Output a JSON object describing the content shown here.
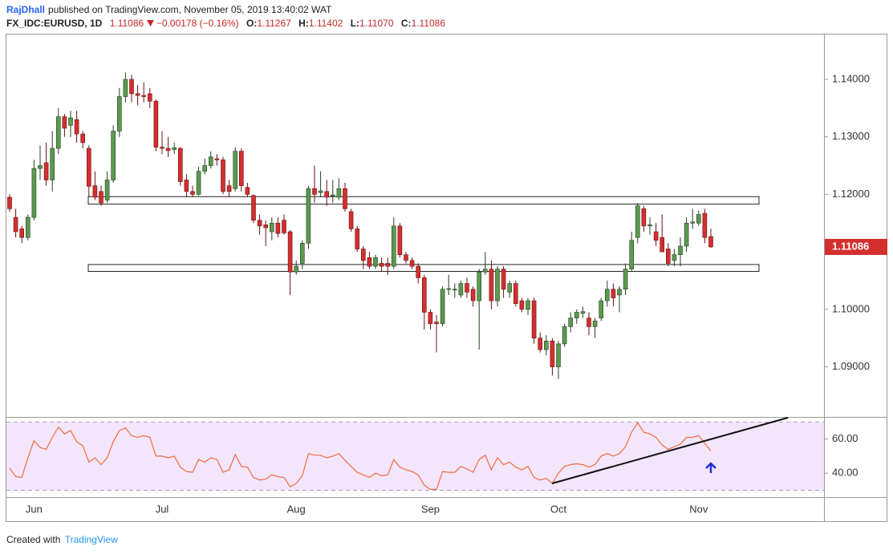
{
  "header": {
    "author": "RajDhall",
    "published": "published on TradingView.com, November 05, 2019 13:40:02 WAT",
    "symbol": "FX_IDC:EURUSD, 1D",
    "last": "1.11086",
    "change": "−0.00178 (−0.16%)",
    "ohlc_labels": [
      "O:",
      "H:",
      "L:",
      "C:"
    ],
    "ohlc_values": [
      "1.11267",
      "1.11402",
      "1.11070",
      "1.11086"
    ]
  },
  "chart_data": [
    {
      "type": "candlestick",
      "up_color": "#5b9a4f",
      "down_color": "#d32f2f",
      "categories": [
        null,
        null,
        null,
        null,
        "Jun",
        null,
        null,
        null,
        null,
        null,
        null,
        null,
        null,
        null,
        null,
        null,
        null,
        null,
        null,
        null,
        null,
        null,
        null,
        null,
        null,
        "Jul",
        null,
        null,
        null,
        null,
        null,
        null,
        null,
        null,
        null,
        null,
        null,
        null,
        null,
        null,
        null,
        null,
        null,
        null,
        null,
        null,
        null,
        "Aug",
        null,
        null,
        null,
        null,
        null,
        null,
        null,
        null,
        null,
        null,
        null,
        null,
        null,
        null,
        null,
        null,
        null,
        null,
        null,
        null,
        null,
        "Sep",
        null,
        null,
        null,
        null,
        null,
        null,
        null,
        null,
        null,
        null,
        null,
        null,
        null,
        null,
        null,
        null,
        null,
        null,
        null,
        null,
        "Oct",
        null,
        null,
        null,
        null,
        null,
        null,
        null,
        null,
        null,
        null,
        null,
        null,
        null,
        null,
        null,
        null,
        null,
        null,
        null,
        null,
        null,
        null,
        "Nov",
        null,
        null
      ],
      "ohlc": [
        [
          1.1195,
          1.12,
          1.117,
          1.1175
        ],
        [
          1.116,
          1.1175,
          1.1125,
          1.1135
        ],
        [
          1.114,
          1.1145,
          1.1115,
          1.1125
        ],
        [
          1.1125,
          1.1165,
          1.112,
          1.116
        ],
        [
          1.116,
          1.126,
          1.1155,
          1.1245
        ],
        [
          1.1245,
          1.1285,
          1.1225,
          1.125
        ],
        [
          1.1255,
          1.129,
          1.1215,
          1.1225
        ],
        [
          1.1225,
          1.131,
          1.1205,
          1.128
        ],
        [
          1.128,
          1.135,
          1.127,
          1.1335
        ],
        [
          1.1335,
          1.134,
          1.13,
          1.1315
        ],
        [
          1.132,
          1.1345,
          1.13,
          1.1333
        ],
        [
          1.133,
          1.1345,
          1.129,
          1.1305
        ],
        [
          1.1305,
          1.131,
          1.128,
          1.129
        ],
        [
          1.128,
          1.1285,
          1.1195,
          1.1214
        ],
        [
          1.1215,
          1.124,
          1.119,
          1.1195
        ],
        [
          1.1205,
          1.1215,
          1.118,
          1.1185
        ],
        [
          1.119,
          1.124,
          1.1185,
          1.1225
        ],
        [
          1.1225,
          1.132,
          1.122,
          1.131
        ],
        [
          1.131,
          1.1385,
          1.13,
          1.137
        ],
        [
          1.137,
          1.1412,
          1.136,
          1.14
        ],
        [
          1.14,
          1.1408,
          1.136,
          1.1375
        ],
        [
          1.1375,
          1.139,
          1.1355,
          1.1372
        ],
        [
          1.1372,
          1.1395,
          1.136,
          1.137
        ],
        [
          1.1375,
          1.1385,
          1.135,
          1.1362
        ],
        [
          1.1362,
          1.1365,
          1.1275,
          1.1282
        ],
        [
          1.1282,
          1.131,
          1.127,
          1.128
        ],
        [
          1.128,
          1.13,
          1.1265,
          1.1276
        ],
        [
          1.1278,
          1.129,
          1.127,
          1.1281
        ],
        [
          1.128,
          1.1282,
          1.1215,
          1.1222
        ],
        [
          1.1225,
          1.1235,
          1.1195,
          1.1205
        ],
        [
          1.1205,
          1.1215,
          1.1195,
          1.12
        ],
        [
          1.12,
          1.1248,
          1.1198,
          1.124
        ],
        [
          1.124,
          1.1262,
          1.1235,
          1.125
        ],
        [
          1.125,
          1.1275,
          1.1245,
          1.1265
        ],
        [
          1.1262,
          1.127,
          1.125,
          1.126
        ],
        [
          1.126,
          1.1265,
          1.12,
          1.1205
        ],
        [
          1.1215,
          1.1225,
          1.1195,
          1.1205
        ],
        [
          1.121,
          1.1282,
          1.1205,
          1.1275
        ],
        [
          1.1275,
          1.128,
          1.1205,
          1.1215
        ],
        [
          1.1212,
          1.122,
          1.1195,
          1.12
        ],
        [
          1.1198,
          1.12,
          1.115,
          1.1155
        ],
        [
          1.1155,
          1.1165,
          1.113,
          1.1145
        ],
        [
          1.1147,
          1.1155,
          1.111,
          1.1142
        ],
        [
          1.1135,
          1.116,
          1.112,
          1.115
        ],
        [
          1.115,
          1.116,
          1.1125,
          1.1132
        ],
        [
          1.1155,
          1.1165,
          1.113,
          1.1133
        ],
        [
          1.1135,
          1.1138,
          1.1025,
          1.1065
        ],
        [
          1.1065,
          1.1085,
          1.106,
          1.1075
        ],
        [
          1.108,
          1.112,
          1.107,
          1.1115
        ],
        [
          1.1115,
          1.1215,
          1.1105,
          1.121
        ],
        [
          1.121,
          1.125,
          1.1185,
          1.12
        ],
        [
          1.1203,
          1.124,
          1.1195,
          1.1206
        ],
        [
          1.1205,
          1.1225,
          1.118,
          1.1195
        ],
        [
          1.1197,
          1.1225,
          1.1185,
          1.1199
        ],
        [
          1.1195,
          1.1228,
          1.119,
          1.121
        ],
        [
          1.121,
          1.122,
          1.117,
          1.1175
        ],
        [
          1.117,
          1.1175,
          1.1135,
          1.114
        ],
        [
          1.114,
          1.1145,
          1.11,
          1.1105
        ],
        [
          1.1105,
          1.111,
          1.107,
          1.1085
        ],
        [
          1.109,
          1.11,
          1.107,
          1.1075
        ],
        [
          1.1075,
          1.1095,
          1.107,
          1.109
        ],
        [
          1.108,
          1.109,
          1.1065,
          1.1075
        ],
        [
          1.108,
          1.109,
          1.106,
          1.1075
        ],
        [
          1.1075,
          1.116,
          1.107,
          1.1145
        ],
        [
          1.1145,
          1.115,
          1.109,
          1.1095
        ],
        [
          1.1095,
          1.11,
          1.108,
          1.1085
        ],
        [
          1.1085,
          1.109,
          1.107,
          1.1075
        ],
        [
          1.1075,
          1.108,
          1.1045,
          1.1055
        ],
        [
          1.1055,
          1.106,
          1.0965,
          1.0995
        ],
        [
          1.0995,
          1.1,
          1.0965,
          1.0975
        ],
        [
          1.0978,
          1.099,
          1.0925,
          1.0975
        ],
        [
          1.0975,
          1.104,
          1.097,
          1.1035
        ],
        [
          1.1035,
          1.106,
          1.1025,
          1.1036
        ],
        [
          1.1034,
          1.1045,
          1.102,
          1.1035
        ],
        [
          1.1025,
          1.105,
          1.102,
          1.1045
        ],
        [
          1.1045,
          1.1055,
          1.102,
          1.103
        ],
        [
          1.1035,
          1.104,
          1.1005,
          1.1015
        ],
        [
          1.1015,
          1.107,
          1.093,
          1.1065
        ],
        [
          1.1065,
          1.11,
          1.106,
          1.107
        ],
        [
          1.107,
          1.1085,
          1.1,
          1.1015
        ],
        [
          1.1015,
          1.1075,
          1.1005,
          1.107
        ],
        [
          1.107,
          1.1075,
          1.102,
          1.1035
        ],
        [
          1.103,
          1.105,
          1.102,
          1.1045
        ],
        [
          1.1045,
          1.105,
          1.1005,
          1.101
        ],
        [
          1.1015,
          1.102,
          1.0995,
          1.1
        ],
        [
          1.1,
          1.102,
          1.099,
          1.1015
        ],
        [
          1.1015,
          1.102,
          1.094,
          1.095
        ],
        [
          1.095,
          1.096,
          1.0925,
          1.093
        ],
        [
          1.093,
          1.0955,
          1.092,
          1.0945
        ],
        [
          1.0945,
          1.095,
          1.0885,
          1.09
        ],
        [
          1.09,
          1.0945,
          1.0879,
          1.094
        ],
        [
          1.094,
          1.0975,
          1.0935,
          1.097
        ],
        [
          1.097,
          1.0995,
          1.096,
          1.0985
        ],
        [
          1.0985,
          1.1,
          1.0975,
          1.0995
        ],
        [
          1.0993,
          1.1005,
          1.0985,
          1.0996
        ],
        [
          1.0985,
          1.0995,
          1.0955,
          1.097
        ],
        [
          1.097,
          1.0985,
          1.095,
          1.098
        ],
        [
          1.0985,
          1.102,
          1.098,
          1.1015
        ],
        [
          1.1015,
          1.105,
          1.1005,
          1.1035
        ],
        [
          1.1035,
          1.1045,
          1.1005,
          1.102
        ],
        [
          1.1025,
          1.104,
          1.0995,
          1.1035
        ],
        [
          1.1035,
          1.108,
          1.1025,
          1.107
        ],
        [
          1.107,
          1.1135,
          1.1065,
          1.112
        ],
        [
          1.1125,
          1.1185,
          1.1115,
          1.118
        ],
        [
          1.1175,
          1.118,
          1.1135,
          1.1145
        ],
        [
          1.1145,
          1.116,
          1.113,
          1.1147
        ],
        [
          1.1135,
          1.115,
          1.111,
          1.112
        ],
        [
          1.1125,
          1.1165,
          1.11,
          1.11
        ],
        [
          1.1105,
          1.1115,
          1.1075,
          1.108
        ],
        [
          1.1085,
          1.1105,
          1.1075,
          1.1095
        ],
        [
          1.1095,
          1.1125,
          1.1075,
          1.111
        ],
        [
          1.111,
          1.116,
          1.11,
          1.115
        ],
        [
          1.115,
          1.1175,
          1.114,
          1.1152
        ],
        [
          1.115,
          1.1172,
          1.1145,
          1.1165
        ],
        [
          1.1167,
          1.1175,
          1.1115,
          1.1125
        ],
        [
          1.11267,
          1.11402,
          1.1107,
          1.11086
        ]
      ],
      "ylim": [
        1.0813,
        1.1478
      ],
      "yticks": [
        {
          "value": 1.09,
          "label": "1.09000"
        },
        {
          "value": 1.1,
          "label": "1.10000"
        },
        {
          "value": 1.12,
          "label": "1.12000"
        },
        {
          "value": 1.13,
          "label": "1.13000"
        },
        {
          "value": 1.14,
          "label": "1.14000"
        }
      ],
      "zones": [
        {
          "from": 1.1183,
          "to": 1.1196
        },
        {
          "from": 1.1066,
          "to": 1.1078
        }
      ],
      "last_price": {
        "value": 1.11086,
        "label": "1.11086"
      }
    },
    {
      "type": "line",
      "color": "#f26d3d",
      "band_fill": "#f3e5fb",
      "values": [
        43,
        38,
        37.5,
        49,
        59,
        55,
        54,
        61,
        67,
        63,
        65,
        58.5,
        56,
        46.5,
        49,
        45,
        49,
        58.5,
        65,
        66.5,
        62,
        61,
        62,
        61,
        50,
        50,
        49,
        50,
        43.5,
        41,
        40.5,
        48,
        46.5,
        49,
        48,
        40.5,
        42,
        51,
        44,
        43.5,
        37.5,
        36,
        36.5,
        39,
        38,
        37.5,
        32,
        34,
        38.5,
        51.5,
        50.5,
        50.5,
        49,
        50,
        51.5,
        47.5,
        44,
        40.5,
        39,
        37.5,
        40,
        38.5,
        39,
        48,
        43.5,
        42,
        41,
        39,
        33,
        30.5,
        30.5,
        41,
        40.5,
        40.5,
        44,
        42.5,
        40.5,
        48,
        50.5,
        42,
        49,
        45,
        46.5,
        43.5,
        42,
        44,
        37.5,
        36,
        37,
        34,
        40,
        44,
        45,
        45.5,
        45,
        43.5,
        45,
        50,
        51.5,
        50,
        51.5,
        55.5,
        64,
        69.5,
        64,
        63,
        61,
        56.5,
        54,
        55.5,
        57,
        61,
        61,
        62,
        57.5,
        53
      ],
      "ylim": [
        26,
        72.5
      ],
      "yticks": [
        {
          "value": 40,
          "label": "40.00"
        },
        {
          "value": 60,
          "label": "60.00"
        }
      ],
      "bands": [
        30,
        70
      ]
    }
  ],
  "footer": {
    "created": "Created with",
    "brand": "TradingView"
  }
}
